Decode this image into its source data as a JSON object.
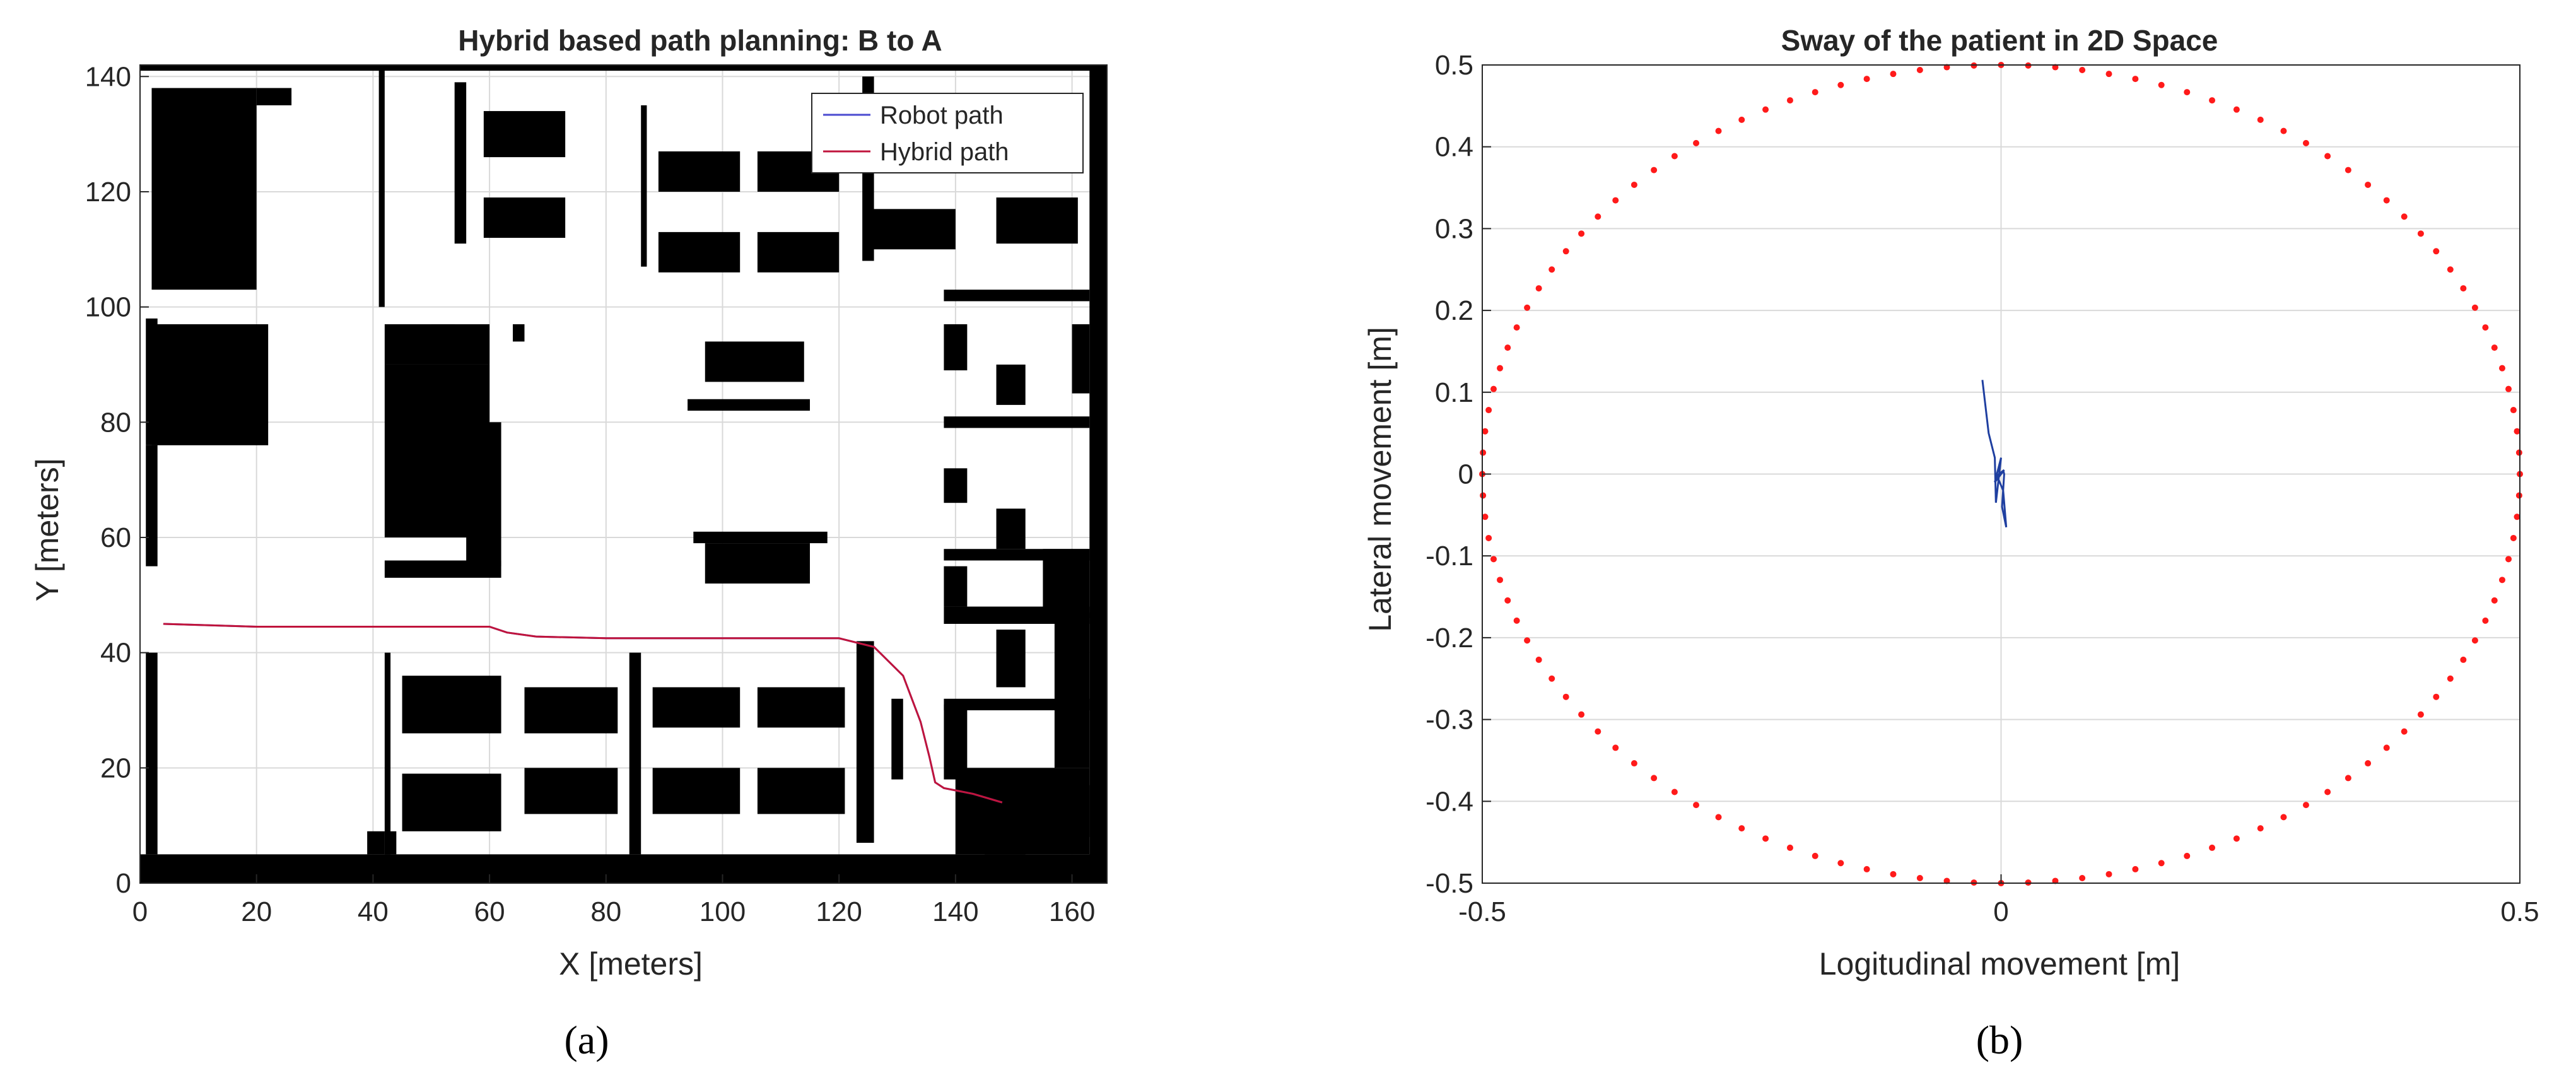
{
  "colors": {
    "robot_path": "#4a4ad0",
    "hybrid_path": "#c0143c",
    "obstacle": "#000000",
    "sway": "#1f3fa0",
    "boundary": "#ff1a1a",
    "grid": "#d9d9d9",
    "axis": "#262626"
  },
  "panels": {
    "a": {
      "caption": "(a)"
    },
    "b": {
      "caption": "(b)"
    }
  },
  "chart_data": [
    {
      "type": "line",
      "title": "Hybrid based path planning: B to A",
      "xlabel": "X [meters]",
      "ylabel": "Y [meters]",
      "xlim": [
        0,
        166
      ],
      "ylim": [
        0,
        142
      ],
      "xticks": [
        0,
        20,
        40,
        60,
        80,
        100,
        120,
        140,
        160
      ],
      "yticks": [
        0,
        20,
        40,
        60,
        80,
        100,
        120,
        140
      ],
      "xtick_labels": [
        "0",
        "20",
        "40",
        "60",
        "80",
        "100",
        "120",
        "140",
        "160"
      ],
      "ytick_labels": [
        "0",
        "20",
        "40",
        "60",
        "80",
        "100",
        "120",
        "140"
      ],
      "grid": true,
      "legend": {
        "placement": "top-right",
        "entries": [
          "Robot path",
          "Hybrid path"
        ]
      },
      "series": [
        {
          "name": "Robot path",
          "x": [
            4,
            20,
            40,
            60,
            63,
            68,
            80,
            100,
            120,
            126,
            131,
            134,
            135.5,
            136.5,
            138,
            143,
            148
          ],
          "y": [
            45,
            44.5,
            44.5,
            44.5,
            43.5,
            42.8,
            42.5,
            42.5,
            42.5,
            41,
            36,
            28,
            22,
            17.5,
            16.5,
            15.5,
            14
          ]
        },
        {
          "name": "Hybrid path",
          "x": [
            4,
            20,
            40,
            60,
            63,
            68,
            80,
            100,
            120,
            126,
            131,
            134,
            135.5,
            136.5,
            138,
            143,
            148
          ],
          "y": [
            45,
            44.5,
            44.5,
            44.5,
            43.5,
            42.8,
            42.5,
            42.5,
            42.5,
            41,
            36,
            28,
            22,
            17.5,
            16.5,
            15.5,
            14
          ]
        }
      ],
      "obstacles": [
        [
          0,
          0,
          166,
          5
        ],
        [
          163,
          0,
          166,
          142
        ],
        [
          0,
          141,
          166,
          142
        ],
        [
          1,
          76,
          3,
          98
        ],
        [
          1,
          55,
          3,
          76
        ],
        [
          1,
          5,
          3,
          40
        ],
        [
          2,
          103,
          20,
          138
        ],
        [
          20,
          135,
          26,
          138
        ],
        [
          2,
          76,
          22,
          97
        ],
        [
          2,
          0,
          1,
          0
        ],
        [
          39,
          5,
          42,
          9
        ],
        [
          42,
          5,
          44,
          9
        ],
        [
          145,
          5,
          152,
          8
        ],
        [
          54,
          111,
          56,
          139
        ],
        [
          59,
          126,
          73,
          134
        ],
        [
          59,
          112,
          73,
          119
        ],
        [
          86,
          107,
          87,
          135
        ],
        [
          89,
          120,
          103,
          127
        ],
        [
          106,
          120,
          120,
          127
        ],
        [
          89,
          106,
          103,
          113
        ],
        [
          106,
          106,
          120,
          113
        ],
        [
          124,
          108,
          126,
          140
        ],
        [
          125,
          110,
          140,
          117
        ],
        [
          147,
          111,
          161,
          119
        ],
        [
          41,
          100,
          42,
          142
        ],
        [
          42,
          90,
          60,
          97
        ],
        [
          42,
          60,
          60,
          90
        ],
        [
          42,
          53,
          62,
          56
        ],
        [
          56,
          55,
          62,
          80
        ],
        [
          50,
          94,
          54,
          97
        ],
        [
          64,
          94,
          66,
          97
        ],
        [
          97,
          87,
          114,
          94
        ],
        [
          94,
          82,
          115,
          84
        ],
        [
          95,
          59,
          118,
          61
        ],
        [
          97,
          52,
          115,
          59
        ],
        [
          138,
          101,
          163,
          103
        ],
        [
          138,
          89,
          142,
          97
        ],
        [
          138,
          79,
          163,
          81
        ],
        [
          147,
          83,
          152,
          90
        ],
        [
          160,
          85,
          163,
          97
        ],
        [
          138,
          66,
          142,
          72
        ],
        [
          138,
          56,
          163,
          58
        ],
        [
          147,
          58,
          152,
          65
        ],
        [
          138,
          48,
          142,
          55
        ],
        [
          138,
          45,
          163,
          48
        ],
        [
          147,
          34,
          152,
          44
        ],
        [
          155,
          46,
          163,
          58
        ],
        [
          157,
          20,
          163,
          47
        ],
        [
          138,
          30,
          163,
          32
        ],
        [
          138,
          18,
          142,
          31
        ],
        [
          140,
          5,
          163,
          20
        ],
        [
          149,
          8,
          163,
          17
        ],
        [
          42,
          5,
          43,
          40
        ],
        [
          45,
          26,
          62,
          36
        ],
        [
          45,
          9,
          62,
          19
        ],
        [
          66,
          26,
          82,
          34
        ],
        [
          66,
          12,
          82,
          20
        ],
        [
          84,
          5,
          86,
          40
        ],
        [
          88,
          27,
          103,
          34
        ],
        [
          106,
          27,
          121,
          34
        ],
        [
          88,
          12,
          103,
          20
        ],
        [
          106,
          12,
          121,
          20
        ],
        [
          123,
          7,
          126,
          42
        ],
        [
          129,
          18,
          131,
          32
        ]
      ]
    },
    {
      "type": "line",
      "title": "Sway of the patient in 2D Space",
      "xlabel": "Logitudinal movement [m]",
      "ylabel": "Lateral movement [m]",
      "xlim": [
        -0.5,
        0.5
      ],
      "ylim": [
        -0.5,
        0.5
      ],
      "xticks": [
        -0.5,
        0,
        0.5
      ],
      "yticks": [
        -0.5,
        -0.4,
        -0.3,
        -0.2,
        -0.1,
        0,
        0.1,
        0.2,
        0.3,
        0.4,
        0.5
      ],
      "xtick_labels": [
        "-0.5",
        "0",
        "0.5"
      ],
      "ytick_labels": [
        "-0.5",
        "-0.4",
        "-0.3",
        "-0.2",
        "-0.1",
        "0",
        "0.1",
        "0.2",
        "0.3",
        "0.4",
        "0.5"
      ],
      "grid": true,
      "boundary_circle": {
        "radius": 0.5,
        "points": 120
      },
      "series": [
        {
          "x": [
            -0.018,
            -0.012,
            -0.006,
            -0.005,
            0.0,
            -0.006,
            0.003,
            -0.004,
            0.002,
            0.005,
            0.001,
            0.003,
            0.002
          ],
          "y": [
            0.115,
            0.05,
            0.02,
            -0.035,
            0.02,
            -0.01,
            0.005,
            -0.002,
            -0.02,
            -0.065,
            -0.04,
            0.0,
            0.005
          ]
        }
      ]
    }
  ]
}
